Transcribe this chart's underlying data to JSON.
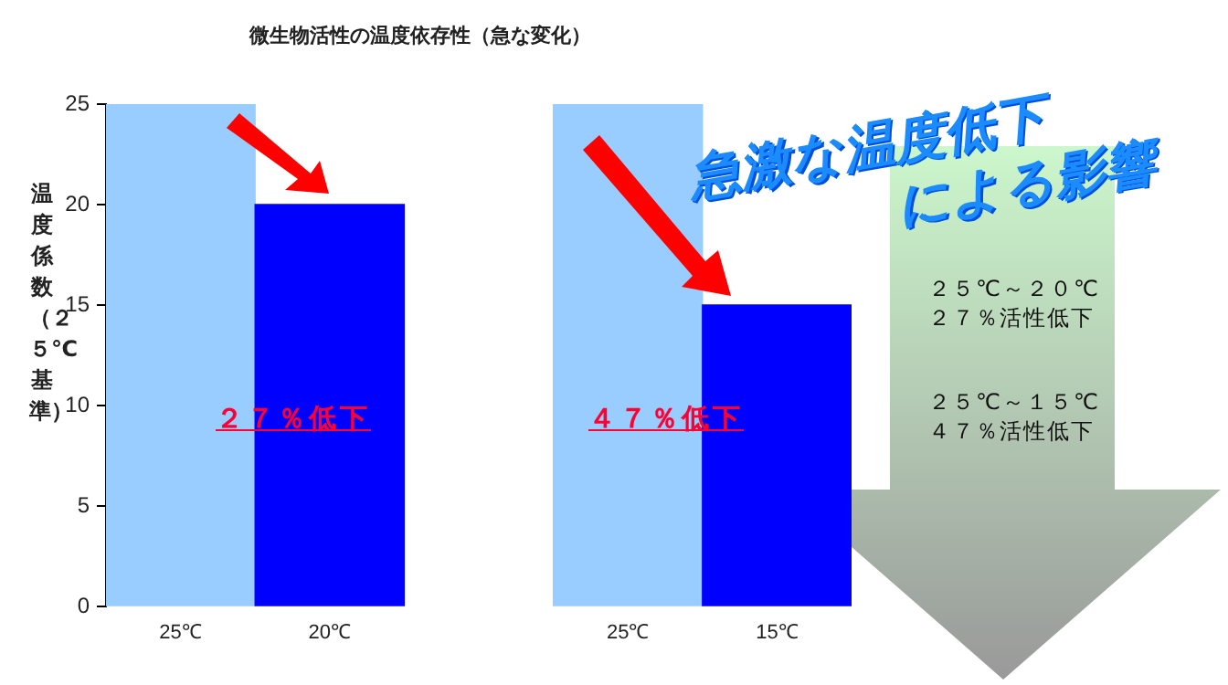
{
  "chart_data": {
    "type": "bar",
    "title": "微生物活性の温度依存性（急な変化）",
    "ylabel": "温度係数（２５℃基準）",
    "categories": [
      "25℃",
      "20℃",
      null,
      "25℃",
      "15℃"
    ],
    "values": [
      25,
      20,
      null,
      25,
      15
    ],
    "colors": [
      "#99ccff",
      "#0000ff",
      "#0000ff",
      "#99ccff",
      "#0000ff"
    ],
    "ylim": [
      0,
      25
    ],
    "yticks": [
      0,
      5,
      10,
      15,
      20,
      25
    ],
    "grid": false,
    "legend": false,
    "annotations": [
      "２７％低下",
      "４７％低下",
      "急激な温度低下",
      "による影響",
      "２５℃～２０℃",
      "２７％活性低下",
      "２５℃～１５℃",
      "４７％活性低下"
    ]
  }
}
